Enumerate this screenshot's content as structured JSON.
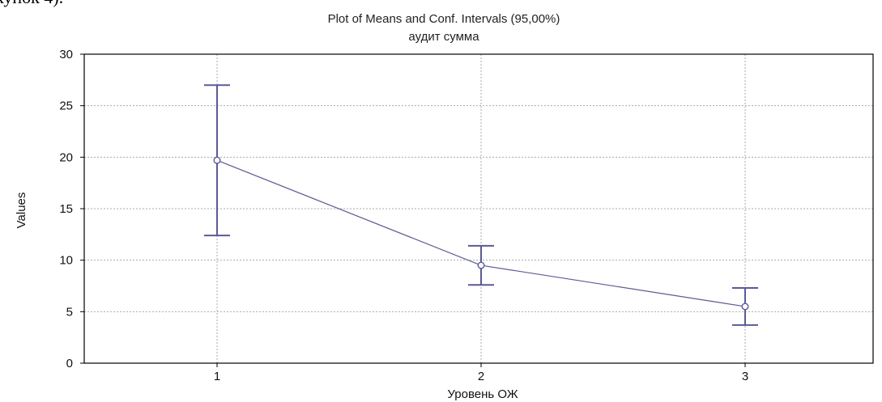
{
  "page": {
    "fragment_text": "кунок 4)."
  },
  "chart_data": {
    "type": "line",
    "title": "Plot of Means and Conf. Intervals (95,00%)",
    "subtitle": "аудит сумма",
    "xlabel": "Уровень ОЖ",
    "ylabel": "Values",
    "categories": [
      "1",
      "2",
      "3"
    ],
    "ylim": [
      0,
      30
    ],
    "yticks": [
      0,
      5,
      10,
      15,
      20,
      25,
      30
    ],
    "grid": true,
    "series": [
      {
        "values": [
          19.7,
          9.5,
          5.5
        ],
        "ci_lower": [
          12.4,
          7.6,
          3.7
        ],
        "ci_upper": [
          27.0,
          11.4,
          7.3
        ]
      }
    ],
    "colors": {
      "series": "#5a5a96",
      "grid": "#aaaaaa",
      "frame": "#000000",
      "background": "#ffffff"
    }
  }
}
